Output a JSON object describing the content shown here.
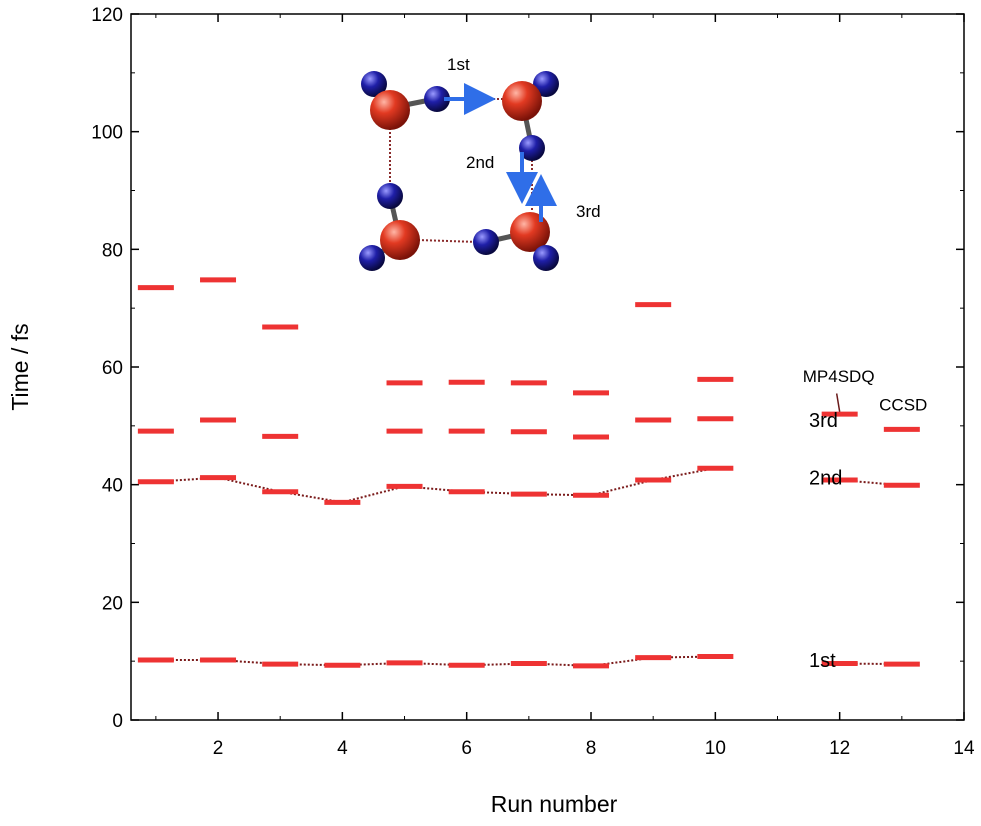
{
  "chart_data": {
    "type": "line",
    "xlabel": "Run number",
    "ylabel": "Time / fs",
    "xlim": [
      0.6,
      14
    ],
    "ylim": [
      0,
      120
    ],
    "x_ticks": [
      2,
      4,
      6,
      8,
      10,
      12,
      14
    ],
    "y_ticks": [
      0,
      20,
      40,
      60,
      80,
      100,
      120
    ],
    "grid": false,
    "colors": {
      "marker": "#ee3333",
      "connector": "#7a1a1a",
      "axis": "#000000"
    },
    "series": [
      {
        "label_text": "1st",
        "connected_runs_1_to_10": true,
        "connected_runs_12_to_13": true,
        "points": [
          [
            1,
            10.2
          ],
          [
            2,
            10.2
          ],
          [
            3,
            9.5
          ],
          [
            4,
            9.3
          ],
          [
            5,
            9.7
          ],
          [
            6,
            9.3
          ],
          [
            7,
            9.6
          ],
          [
            8,
            9.2
          ],
          [
            9,
            10.6
          ],
          [
            10,
            10.8
          ],
          [
            12,
            9.6
          ],
          [
            13,
            9.5
          ]
        ]
      },
      {
        "label_text": "2nd",
        "connected_runs_1_to_10": true,
        "connected_runs_12_to_13": true,
        "points": [
          [
            1,
            40.5
          ],
          [
            2,
            41.2
          ],
          [
            3,
            38.8
          ],
          [
            4,
            37.0
          ],
          [
            5,
            39.7
          ],
          [
            6,
            38.8
          ],
          [
            7,
            38.4
          ],
          [
            8,
            38.2
          ],
          [
            9,
            40.8
          ],
          [
            10,
            42.8
          ],
          [
            12,
            40.8
          ],
          [
            13,
            39.9
          ]
        ]
      },
      {
        "label_text": "3rd",
        "points": [
          [
            1,
            49.1
          ],
          [
            2,
            51.0
          ],
          [
            3,
            48.2
          ],
          [
            5,
            49.1
          ],
          [
            6,
            49.1
          ],
          [
            7,
            49.0
          ],
          [
            8,
            48.1
          ],
          [
            9,
            51.0
          ],
          [
            10,
            51.2
          ],
          [
            12,
            52.0
          ],
          [
            13,
            49.4
          ]
        ]
      },
      {
        "label_text": "",
        "points": [
          [
            1,
            73.5
          ],
          [
            2,
            74.8
          ],
          [
            3,
            66.8
          ],
          [
            5,
            57.3
          ],
          [
            6,
            57.4
          ],
          [
            7,
            57.3
          ],
          [
            8,
            55.6
          ],
          [
            9,
            70.6
          ],
          [
            10,
            57.9
          ]
        ]
      }
    ],
    "annotations": [
      {
        "text": "1st",
        "x": 12.15,
        "y": 10.2
      },
      {
        "text": "2nd",
        "x": 12.15,
        "y": 41.2
      },
      {
        "text": "3rd",
        "x": 12.15,
        "y": 51.0
      },
      {
        "text": "MP4SDQ",
        "x": 12.05,
        "y": 58.6
      },
      {
        "text": "CCSD",
        "x": 13.15,
        "y": 53.8
      }
    ],
    "inset": {
      "description_labels": [
        "1st",
        "2nd",
        "3rd"
      ],
      "colors": {
        "oxygen": "#e23a22",
        "hydrogen": "#1f1fa8",
        "arrow": "#2f6ee8",
        "bond": "#555555",
        "hbond": "#8a2a2a"
      }
    }
  }
}
